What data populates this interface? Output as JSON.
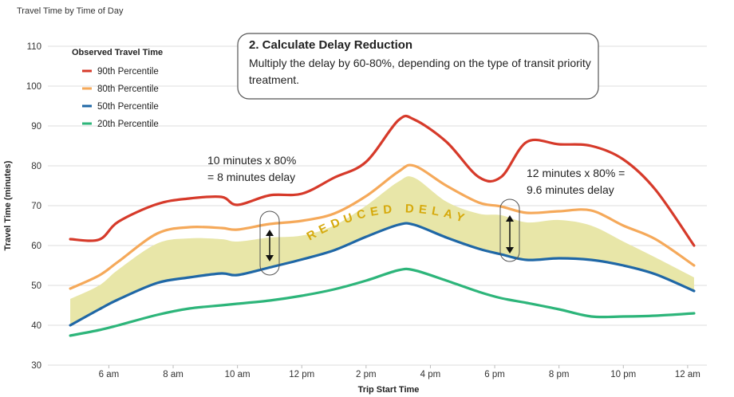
{
  "chart_data": {
    "type": "line",
    "title": "Travel Time by Time of Day",
    "xlabel": "Trip Start Time",
    "ylabel": "Travel Time (minutes)",
    "legend_title": "Observed Travel Time",
    "x": [
      4.8,
      5.7,
      6.3,
      7.5,
      8.5,
      9.5,
      10,
      11,
      12,
      13,
      14,
      15,
      15.5,
      16.5,
      17.5,
      18.2,
      19,
      20,
      21,
      22,
      23,
      24.2
    ],
    "series": [
      {
        "name": "90th Percentile",
        "color": "#d63a2a",
        "values": [
          61.6,
          61.5,
          66,
          70.4,
          71.8,
          72.2,
          70.2,
          72.6,
          73,
          77,
          81,
          91.4,
          91.6,
          86,
          77.2,
          77.2,
          86,
          85.4,
          85,
          81.6,
          74,
          60
        ]
      },
      {
        "name": "80th Percentile",
        "color": "#f5a95a",
        "values": [
          49.2,
          52.5,
          56,
          63,
          64.6,
          64.4,
          64,
          65.4,
          66.2,
          68,
          72.4,
          78.5,
          80,
          75,
          70.8,
          69.8,
          68.2,
          68.6,
          68.8,
          65,
          61.6,
          55
        ]
      },
      {
        "name": "50th Percentile",
        "color": "#1f67a6",
        "values": [
          40,
          44,
          46.5,
          50.6,
          52,
          53,
          52.6,
          54.5,
          56.5,
          58.8,
          62.2,
          65.2,
          65.2,
          62,
          59.2,
          57.8,
          56.4,
          56.8,
          56.4,
          55,
          52.8,
          48.6
        ]
      },
      {
        "name": "20th Percentile",
        "color": "#2db57a",
        "values": [
          37.4,
          38.8,
          40,
          42.6,
          44.2,
          45,
          45.4,
          46.2,
          47.4,
          49,
          51.2,
          53.8,
          53.8,
          51.2,
          48.4,
          46.8,
          45.6,
          44,
          42.2,
          42.2,
          42.4,
          43
        ]
      }
    ],
    "band": {
      "color": "#e8e6a8",
      "values": [
        46.6,
        50,
        54,
        60.5,
        61.8,
        61.6,
        61,
        62,
        62.5,
        65,
        70,
        76,
        77,
        71,
        68,
        67.6,
        65.8,
        66.4,
        65,
        61,
        57,
        52
      ]
    },
    "band_label": "REDUCED DELAY",
    "xlim": [
      4.6,
      24.4
    ],
    "xticks": [
      {
        "value": 6,
        "label": "6 am"
      },
      {
        "value": 8,
        "label": "8 am"
      },
      {
        "value": 10,
        "label": "10 am"
      },
      {
        "value": 12,
        "label": "12 pm"
      },
      {
        "value": 14,
        "label": "2 pm"
      },
      {
        "value": 16,
        "label": "4 pm"
      },
      {
        "value": 18,
        "label": "6 pm"
      },
      {
        "value": 20,
        "label": "8 pm"
      },
      {
        "value": 22,
        "label": "10 pm"
      },
      {
        "value": 24,
        "label": "12 am"
      }
    ],
    "ylim": [
      30,
      110
    ],
    "yticks": [
      30,
      40,
      50,
      60,
      70,
      80,
      90,
      100,
      110
    ],
    "grid": true,
    "callout": {
      "title": "2. Calculate Delay Reduction",
      "text": "Multiply the delay by 60-80%, depending on the type of transit priority treatment."
    },
    "annotations": [
      {
        "lines": [
          "10 minutes x 80%",
          "= 8 minutes delay"
        ]
      },
      {
        "lines": [
          "12 minutes x 80% =",
          "9.6 minutes delay"
        ]
      }
    ]
  }
}
